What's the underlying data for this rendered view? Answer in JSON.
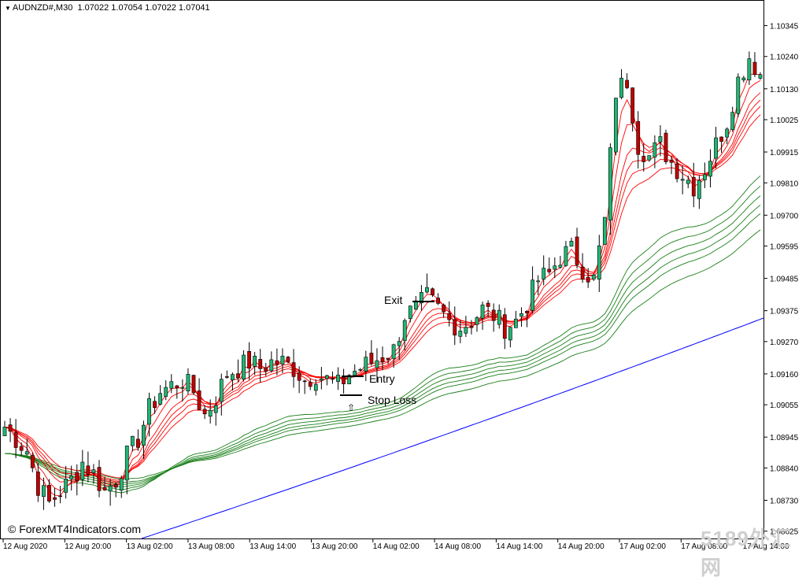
{
  "header": {
    "symbol": "AUDNZD#,M30",
    "ohlc": "1.07022 1.07054 1.07022 1.07041"
  },
  "watermark": "© ForexMT4Indicators.com",
  "watermark_logo": "5189外汇网",
  "annotations": {
    "exit": "Exit",
    "entry": "Entry",
    "stop_loss": "Stop Loss",
    "arrow": "⇧"
  },
  "colors": {
    "bull": "#22b573",
    "bear": "#c00000",
    "fast_ema": "#ff0000",
    "slow_ema": "#1a7f1a",
    "long_ma": "#0000ff"
  },
  "chart_data": {
    "type": "candlestick",
    "yticks": [
      "1.10345",
      "1.10240",
      "1.10130",
      "1.10025",
      "1.09915",
      "1.09810",
      "1.09700",
      "1.09595",
      "1.09485",
      "1.09375",
      "1.09270",
      "1.09160",
      "1.09055",
      "1.08945",
      "1.08840",
      "1.08730",
      "1.08625"
    ],
    "ylim": [
      1.086,
      1.104
    ],
    "xticks": [
      "12 Aug 2020",
      "12 Aug 20:00",
      "13 Aug 02:00",
      "13 Aug 08:00",
      "13 Aug 14:00",
      "13 Aug 20:00",
      "14 Aug 02:00",
      "14 Aug 08:00",
      "14 Aug 14:00",
      "14 Aug 20:00",
      "17 Aug 02:00",
      "17 Aug 08:00",
      "17 Aug 14:00"
    ],
    "price_path": [
      [
        0,
        1.0898
      ],
      [
        4,
        1.089
      ],
      [
        6,
        1.0878
      ],
      [
        8,
        1.0872
      ],
      [
        10,
        1.0876
      ],
      [
        12,
        1.088
      ],
      [
        14,
        1.0886
      ],
      [
        16,
        1.0882
      ],
      [
        18,
        1.0876
      ],
      [
        20,
        1.088
      ],
      [
        22,
        1.0888
      ],
      [
        24,
        1.0894
      ],
      [
        26,
        1.0904
      ],
      [
        28,
        1.091
      ],
      [
        30,
        1.0912
      ],
      [
        32,
        1.0914
      ],
      [
        34,
        1.091
      ],
      [
        36,
        1.0902
      ],
      [
        38,
        1.0908
      ],
      [
        40,
        1.0916
      ],
      [
        42,
        1.0918
      ],
      [
        44,
        1.092
      ],
      [
        46,
        1.0918
      ],
      [
        48,
        1.092
      ],
      [
        50,
        1.092
      ],
      [
        52,
        1.0918
      ],
      [
        54,
        1.0914
      ],
      [
        56,
        1.0916
      ],
      [
        58,
        1.0914
      ],
      [
        60,
        1.0912
      ],
      [
        62,
        1.0916
      ],
      [
        64,
        1.0918
      ],
      [
        66,
        1.092
      ],
      [
        68,
        1.0922
      ],
      [
        70,
        1.0924
      ],
      [
        72,
        1.0936
      ],
      [
        74,
        1.0938
      ],
      [
        76,
        1.0942
      ],
      [
        78,
        1.0938
      ],
      [
        80,
        1.0934
      ],
      [
        82,
        1.0932
      ],
      [
        84,
        1.0934
      ],
      [
        86,
        1.0938
      ],
      [
        88,
        1.0936
      ],
      [
        90,
        1.0932
      ],
      [
        92,
        1.0934
      ],
      [
        94,
        1.094
      ],
      [
        96,
        1.0948
      ],
      [
        98,
        1.095
      ],
      [
        100,
        1.0956
      ],
      [
        102,
        1.0958
      ],
      [
        104,
        1.0952
      ],
      [
        106,
        1.0948
      ],
      [
        108,
        1.0968
      ],
      [
        110,
        1.1012
      ],
      [
        112,
        1.1016
      ],
      [
        114,
        1.0994
      ],
      [
        116,
        1.099
      ],
      [
        118,
        1.0994
      ],
      [
        120,
        1.0988
      ],
      [
        122,
        1.0984
      ],
      [
        124,
        1.098
      ],
      [
        126,
        1.0986
      ],
      [
        128,
        1.0994
      ],
      [
        130,
        1.1002
      ],
      [
        132,
        1.1016
      ],
      [
        134,
        1.1024
      ],
      [
        136,
        1.1018
      ]
    ]
  }
}
